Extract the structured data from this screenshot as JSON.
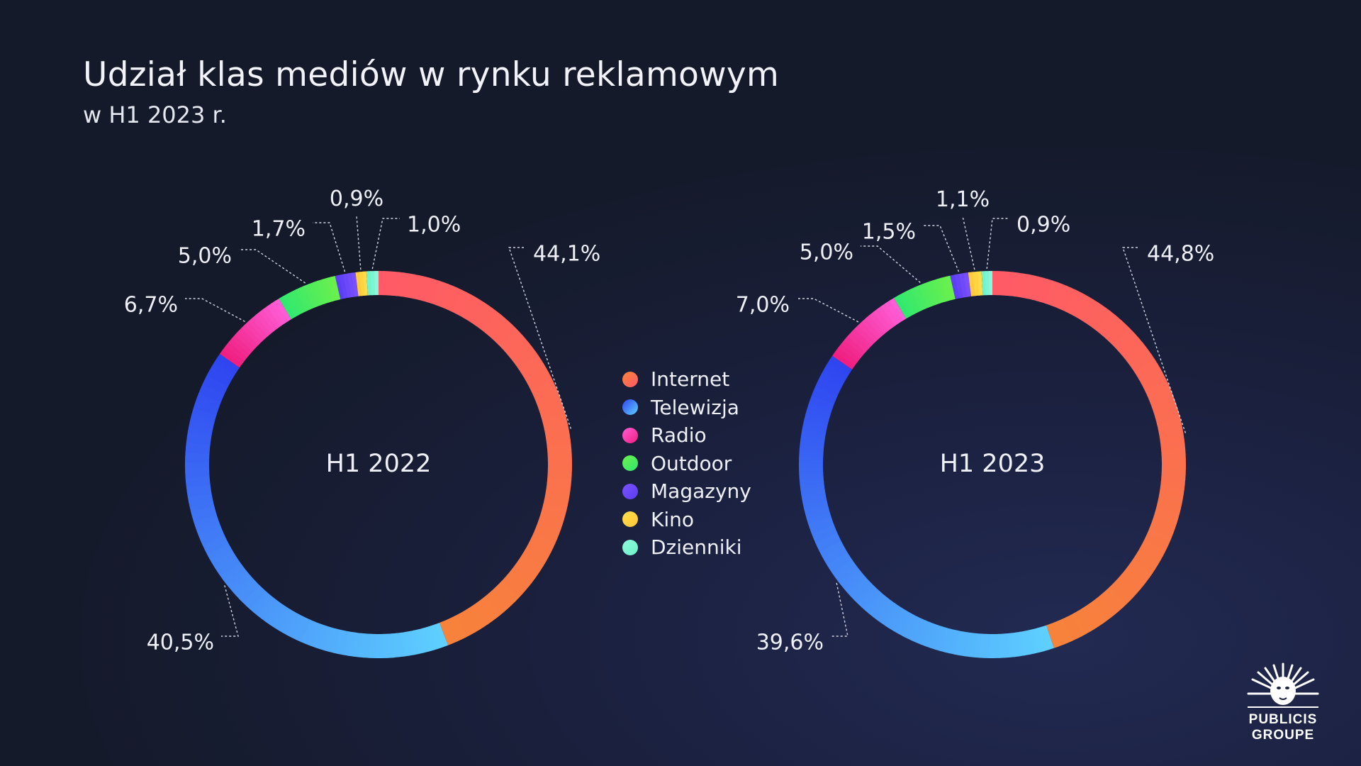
{
  "title": "Udział klas mediów w rynku reklamowym",
  "subtitle": "w H1 2023 r.",
  "logo": {
    "line1": "PUBLICIS",
    "line2": "GROUPE"
  },
  "chart_data": [
    {
      "type": "pie",
      "variant": "donut",
      "title": "H1 2022",
      "categories": [
        "Internet",
        "Telewizja",
        "Radio",
        "Outdoor",
        "Magazyny",
        "Kino",
        "Dzienniki"
      ],
      "values": [
        44.1,
        40.5,
        6.7,
        5.0,
        1.7,
        0.9,
        1.0
      ],
      "labels": [
        "44,1%",
        "40,5%",
        "6,7%",
        "5,0%",
        "1,7%",
        "0,9%",
        "1,0%"
      ]
    },
    {
      "type": "pie",
      "variant": "donut",
      "title": "H1 2023",
      "categories": [
        "Internet",
        "Telewizja",
        "Radio",
        "Outdoor",
        "Magazyny",
        "Kino",
        "Dzienniki"
      ],
      "values": [
        44.8,
        39.6,
        7.0,
        5.0,
        1.5,
        1.1,
        0.9
      ],
      "labels": [
        "44,8%",
        "39,6%",
        "7,0%",
        "5,0%",
        "1,5%",
        "1,1%",
        "0,9%"
      ]
    }
  ],
  "legend": {
    "position": "center",
    "items": [
      {
        "label": "Internet",
        "colors": [
          "#ff5a67",
          "#f7833a"
        ]
      },
      {
        "label": "Telewizja",
        "colors": [
          "#5ed0ff",
          "#2e44f0"
        ]
      },
      {
        "label": "Radio",
        "colors": [
          "#ee1e7e",
          "#ff5ed8"
        ]
      },
      {
        "label": "Outdoor",
        "colors": [
          "#30e870",
          "#6cf04c"
        ]
      },
      {
        "label": "Magazyny",
        "colors": [
          "#5a3df2",
          "#7c52ff"
        ]
      },
      {
        "label": "Kino",
        "colors": [
          "#ffc53a",
          "#ffe04a"
        ]
      },
      {
        "label": "Dzienniki",
        "colors": [
          "#6ef2c8",
          "#8ef8dc"
        ]
      }
    ]
  }
}
